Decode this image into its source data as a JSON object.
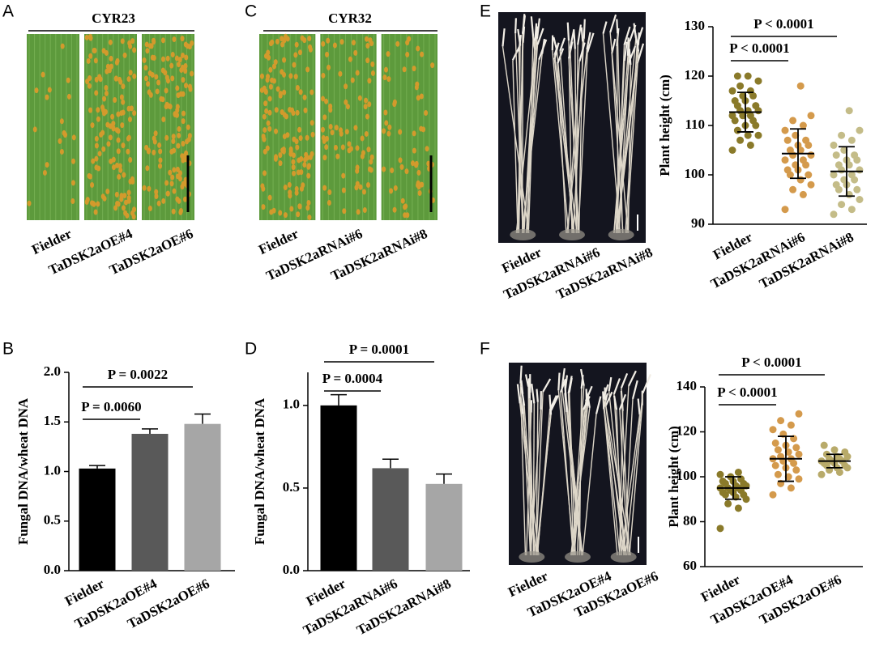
{
  "figure": {
    "images": [
      {
        "panel": "A",
        "title": "CYR23",
        "labels": [
          "Fielder",
          "TaDSK2aOE#4",
          "TaDSK2aOE#6"
        ]
      },
      {
        "panel": "C",
        "title": "CYR32",
        "labels": [
          "Fielder",
          "TaDSK2aRNAi#6",
          "TaDSK2aRNAi#8"
        ]
      },
      {
        "panel": "E",
        "labels": [
          "Fielder",
          "TaDSK2aRNAi#6",
          "TaDSK2aRNAi#8"
        ]
      },
      {
        "panel": "F",
        "labels": [
          "Fielder",
          "TaDSK2aOE#4",
          "TaDSK2aOE#6"
        ]
      }
    ]
  },
  "chart_data": [
    {
      "type": "bar",
      "panel": "B",
      "ylabel": "Fungal DNA/wheat DNA",
      "categories": [
        "Fielder",
        "TaDSK2aOE#4",
        "TaDSK2aOE#6"
      ],
      "values": [
        1.03,
        1.38,
        1.48
      ],
      "errors": [
        0.03,
        0.05,
        0.1
      ],
      "colors": [
        "#000000",
        "#595959",
        "#a6a6a6"
      ],
      "ylim": [
        0,
        2
      ],
      "yticks": [
        {
          "value": 0,
          "label": "0.0"
        },
        {
          "value": 0.5,
          "label": "0.5"
        },
        {
          "value": 1,
          "label": "1.0"
        },
        {
          "value": 1.5,
          "label": "1.5"
        },
        {
          "value": 2,
          "label": "2.0"
        }
      ],
      "annotations": [
        {
          "text": "P = 0.0060",
          "between": [
            0,
            1
          ]
        },
        {
          "text": "P = 0.0022",
          "between": [
            0,
            2
          ]
        }
      ]
    },
    {
      "type": "bar",
      "panel": "D",
      "ylabel": "Fungal DNA/wheat DNA",
      "categories": [
        "Fielder",
        "TaDSK2aRNAi#6",
        "TaDSK2aRNAi#8"
      ],
      "values": [
        1.0,
        0.62,
        0.525
      ],
      "errors": [
        0.065,
        0.055,
        0.06
      ],
      "colors": [
        "#000000",
        "#595959",
        "#a6a6a6"
      ],
      "ylim": [
        0,
        1.2
      ],
      "yticks": [
        {
          "value": 0,
          "label": "0.0"
        },
        {
          "value": 0.5,
          "label": "0.5"
        },
        {
          "value": 1,
          "label": "1.0"
        }
      ],
      "annotations": [
        {
          "text": "P = 0.0004",
          "between": [
            0,
            1
          ]
        },
        {
          "text": "P = 0.0001",
          "between": [
            0,
            2
          ]
        }
      ]
    },
    {
      "type": "dotplot",
      "ylabel": "Plant height (cm)",
      "categories": [
        "Fielder",
        "TaDSK2aRNAi#6",
        "TaDSK2aRNAi#8"
      ],
      "groups": [
        {
          "color": "#8a7a2a",
          "mean": 112.7,
          "sd": 4.0,
          "values": [
            105,
            106,
            107,
            108,
            108,
            109,
            110,
            110,
            111,
            111,
            112,
            112,
            112,
            113,
            113,
            113,
            114,
            114,
            115,
            115,
            116,
            116,
            117,
            117,
            118,
            119,
            120,
            120
          ]
        },
        {
          "color": "#d49a4c",
          "mean": 104.3,
          "sd": 5.0,
          "values": [
            93,
            96,
            97,
            98,
            99,
            100,
            100,
            101,
            101,
            102,
            102,
            103,
            103,
            104,
            104,
            105,
            105,
            106,
            106,
            107,
            107,
            108,
            109,
            110,
            111,
            112,
            118
          ]
        },
        {
          "color": "#c4bc88",
          "mean": 100.7,
          "sd": 5.0,
          "values": [
            92,
            93,
            94,
            95,
            96,
            97,
            97,
            98,
            98,
            99,
            99,
            100,
            100,
            101,
            101,
            102,
            102,
            103,
            103,
            104,
            104,
            105,
            106,
            107,
            108,
            109,
            113
          ]
        }
      ],
      "ylim": [
        90,
        130
      ],
      "yticks": [
        90,
        100,
        110,
        120,
        130
      ],
      "annotations": [
        {
          "text": "P < 0.0001",
          "between": [
            0,
            1
          ]
        },
        {
          "text": "P < 0.0001",
          "between": [
            0,
            2
          ]
        }
      ]
    },
    {
      "type": "dotplot",
      "ylabel": "Plant height (cm)",
      "categories": [
        "Fielder",
        "TaDSK2aOE#4",
        "TaDSK2aOE#6"
      ],
      "groups": [
        {
          "color": "#8a7a2a",
          "mean": 95,
          "sd": 5,
          "values": [
            77,
            86,
            88,
            90,
            91,
            92,
            92,
            93,
            93,
            94,
            94,
            95,
            95,
            95,
            96,
            96,
            97,
            97,
            98,
            98,
            99,
            100,
            101,
            102
          ]
        },
        {
          "color": "#d49a4c",
          "mean": 108,
          "sd": 10,
          "values": [
            92,
            95,
            97,
            99,
            100,
            101,
            103,
            104,
            105,
            106,
            107,
            108,
            108,
            109,
            110,
            111,
            112,
            113,
            114,
            115,
            117,
            119,
            121,
            123,
            125,
            128
          ]
        },
        {
          "color": "#b8aa6a",
          "mean": 107,
          "sd": 3,
          "values": [
            101,
            102,
            103,
            104,
            104,
            105,
            105,
            106,
            106,
            107,
            107,
            107,
            108,
            108,
            109,
            109,
            110,
            111,
            112,
            114
          ]
        }
      ],
      "ylim": [
        60,
        140
      ],
      "yticks": [
        60,
        80,
        100,
        120,
        140
      ],
      "annotations": [
        {
          "text": "P < 0.0001",
          "between": [
            0,
            1
          ]
        },
        {
          "text": "P < 0.0001",
          "between": [
            0,
            2
          ]
        }
      ]
    }
  ]
}
